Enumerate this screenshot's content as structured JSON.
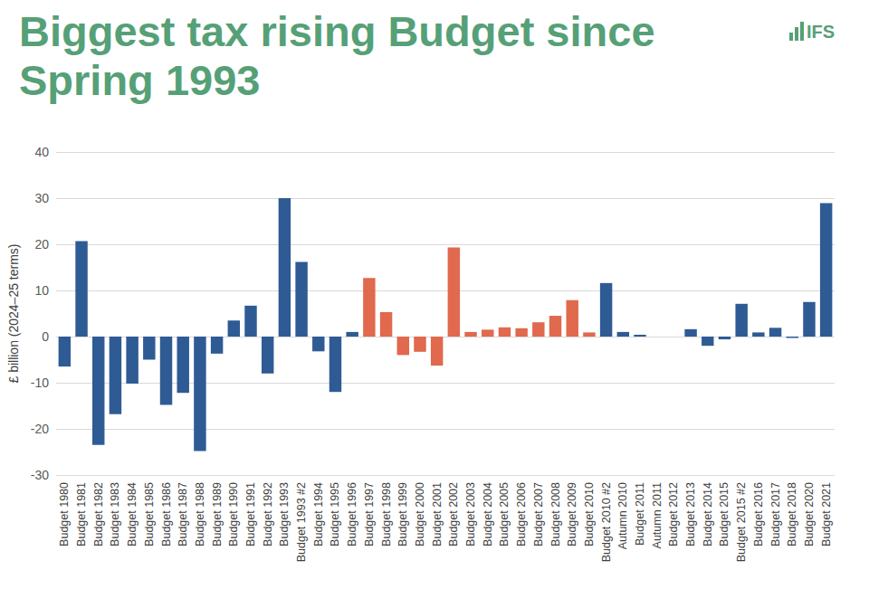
{
  "chart_data": {
    "type": "bar",
    "title": "Biggest tax rising Budget since Spring 1993",
    "logo": "IFS",
    "y_label": "£ billion (2024–25 terms)",
    "categories": [
      "Budget 1980",
      "Budget 1981",
      "Budget 1982",
      "Budget 1983",
      "Budget 1984",
      "Budget 1985",
      "Budget 1986",
      "Budget 1987",
      "Budget 1988",
      "Budget 1989",
      "Budget 1990",
      "Budget 1991",
      "Budget 1992",
      "Budget 1993",
      "Budget 1993 #2",
      "Budget 1994",
      "Budget 1995",
      "Budget 1996",
      "Budget 1997",
      "Budget 1998",
      "Budget 1999",
      "Budget 2000",
      "Budget 2001",
      "Budget 2002",
      "Budget 2003",
      "Budget 2004",
      "Budget 2005",
      "Budget 2006",
      "Budget 2007",
      "Budget 2008",
      "Budget 2009",
      "Budget 2010",
      "Budget 2010 #2",
      "Autumn 2010",
      "Budget 2011",
      "Autumn 2011",
      "Budget 2012",
      "Budget 2013",
      "Budget 2014",
      "Budget 2015",
      "Budget 2015 #2",
      "Budget 2016",
      "Budget 2017",
      "Budget 2018",
      "Budget 2020",
      "Budget 2021"
    ],
    "values": [
      -6.5,
      20.7,
      -23.5,
      -16.8,
      -10.2,
      -5,
      -14.8,
      -12.2,
      -24.8,
      -3.7,
      3.5,
      6.7,
      -8,
      30,
      16.2,
      -3.2,
      -12,
      1,
      12.7,
      5.3,
      -4,
      -3.3,
      -6.3,
      19.3,
      1,
      1.5,
      2,
      1.8,
      3.1,
      4.5,
      7.9,
      0.9,
      11.6,
      1,
      0.4,
      0,
      0,
      1.6,
      -2,
      -0.6,
      7.1,
      0.9,
      1.9,
      -0.3,
      7.5,
      28.9
    ],
    "colors": [
      "#2f5b95",
      "#2f5b95",
      "#2f5b95",
      "#2f5b95",
      "#2f5b95",
      "#2f5b95",
      "#2f5b95",
      "#2f5b95",
      "#2f5b95",
      "#2f5b95",
      "#2f5b95",
      "#2f5b95",
      "#2f5b95",
      "#2f5b95",
      "#2f5b95",
      "#2f5b95",
      "#2f5b95",
      "#2f5b95",
      "#e0694e",
      "#e0694e",
      "#e0694e",
      "#e0694e",
      "#e0694e",
      "#e0694e",
      "#e0694e",
      "#e0694e",
      "#e0694e",
      "#e0694e",
      "#e0694e",
      "#e0694e",
      "#e0694e",
      "#e0694e",
      "#2f5b95",
      "#2f5b95",
      "#2f5b95",
      "#2f5b95",
      "#2f5b95",
      "#2f5b95",
      "#2f5b95",
      "#2f5b95",
      "#2f5b95",
      "#2f5b95",
      "#2f5b95",
      "#2f5b95",
      "#2f5b95",
      "#2f5b95"
    ],
    "ylim": [
      -30,
      40
    ],
    "yticks": [
      -30,
      -20,
      -10,
      0,
      10,
      20,
      30,
      40
    ],
    "grid": true
  }
}
